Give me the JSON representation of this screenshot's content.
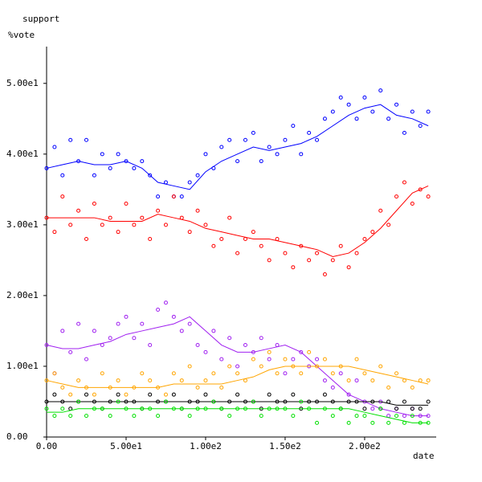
{
  "chart_data": {
    "type": "scatter",
    "title": "support",
    "y_label": "%vote",
    "x_label": "date",
    "xlim": [
      0,
      245
    ],
    "ylim": [
      0,
      55.2
    ],
    "xticks": [
      {
        "value": 0,
        "label": "0.00"
      },
      {
        "value": 50,
        "label": "5.00e1"
      },
      {
        "value": 100,
        "label": "1.00e2"
      },
      {
        "value": 150,
        "label": "1.50e2"
      },
      {
        "value": 200,
        "label": "2.00e2"
      }
    ],
    "yticks": [
      {
        "value": 0,
        "label": "0.00"
      },
      {
        "value": 10,
        "label": "1.00e1"
      },
      {
        "value": 20,
        "label": "2.00e1"
      },
      {
        "value": 30,
        "label": "3.00e1"
      },
      {
        "value": 40,
        "label": "4.00e1"
      },
      {
        "value": 50,
        "label": "5.00e1"
      }
    ],
    "x": [
      0,
      5,
      10,
      15,
      20,
      25,
      30,
      35,
      40,
      45,
      50,
      55,
      60,
      65,
      70,
      75,
      80,
      85,
      90,
      95,
      100,
      105,
      110,
      115,
      120,
      125,
      130,
      135,
      140,
      145,
      150,
      155,
      160,
      165,
      170,
      175,
      180,
      185,
      190,
      195,
      200,
      205,
      210,
      215,
      220,
      225,
      230,
      235,
      240
    ],
    "smooth_x": [
      0,
      10,
      20,
      30,
      40,
      50,
      60,
      70,
      80,
      90,
      100,
      110,
      120,
      130,
      140,
      150,
      160,
      170,
      180,
      190,
      200,
      210,
      220,
      230,
      240
    ],
    "series": [
      {
        "color": "#0000ff",
        "values": [
          38,
          41,
          37,
          42,
          39,
          42,
          37,
          40,
          38,
          40,
          39,
          38,
          39,
          37,
          34,
          36,
          34,
          34,
          36,
          37,
          40,
          38,
          41,
          42,
          39,
          42,
          43,
          39,
          41,
          40,
          42,
          44,
          40,
          43,
          42,
          45,
          46,
          48,
          47,
          45,
          48,
          46,
          49,
          45,
          47,
          43,
          46,
          44,
          46
        ],
        "smooth": [
          38,
          38.5,
          39,
          38.5,
          38.5,
          39,
          38,
          36,
          35.5,
          35,
          37.5,
          39,
          40,
          41,
          40.5,
          41,
          41.5,
          42.5,
          44,
          45.5,
          46.5,
          47,
          45.5,
          45,
          44
        ]
      },
      {
        "color": "#ff0000",
        "values": [
          31,
          29,
          34,
          30,
          32,
          28,
          33,
          30,
          31,
          29,
          33,
          30,
          31,
          28,
          32,
          30,
          34,
          31,
          29,
          32,
          30,
          27,
          28,
          31,
          26,
          28,
          29,
          27,
          25,
          28,
          26,
          24,
          27,
          25,
          26,
          23,
          25,
          27,
          24,
          26,
          28,
          29,
          32,
          30,
          34,
          36,
          33,
          35,
          34
        ],
        "smooth": [
          31,
          31,
          31,
          31,
          30.5,
          30.5,
          30.5,
          31.5,
          31,
          30.5,
          29.5,
          29,
          28.5,
          28,
          28,
          27.5,
          27,
          26.5,
          25.5,
          26,
          27.5,
          29.5,
          32,
          34.5,
          35.5
        ]
      },
      {
        "color": "#a020f0",
        "values": [
          13,
          9,
          15,
          12,
          16,
          11,
          15,
          13,
          14,
          16,
          17,
          14,
          16,
          13,
          18,
          19,
          17,
          15,
          16,
          13,
          12,
          15,
          11,
          14,
          10,
          13,
          12,
          14,
          11,
          13,
          9,
          11,
          12,
          10,
          11,
          8,
          7,
          9,
          6,
          8,
          5,
          4,
          5,
          3,
          4,
          3,
          4,
          3,
          3
        ],
        "smooth": [
          13,
          12.5,
          12.5,
          13,
          13.5,
          14.5,
          15,
          15.5,
          16,
          17,
          15,
          13,
          12,
          12,
          12.5,
          13,
          12,
          10,
          8,
          6,
          5,
          4,
          3.5,
          3,
          3
        ]
      },
      {
        "color": "#ffa500",
        "values": [
          8,
          9,
          7,
          6,
          8,
          7,
          6,
          9,
          7,
          8,
          6,
          7,
          9,
          8,
          7,
          6,
          9,
          8,
          10,
          7,
          8,
          9,
          7,
          10,
          9,
          8,
          11,
          10,
          12,
          9,
          11,
          10,
          9,
          12,
          10,
          11,
          9,
          10,
          8,
          11,
          9,
          8,
          10,
          7,
          9,
          8,
          7,
          8,
          8
        ],
        "smooth": [
          8,
          7.5,
          7,
          7,
          7,
          7,
          7,
          7,
          7.5,
          7.5,
          7.5,
          7.5,
          8,
          8.5,
          9.5,
          10,
          10,
          10,
          10,
          10,
          9.5,
          9,
          8.5,
          8,
          7.5
        ]
      },
      {
        "color": "#000000",
        "values": [
          5,
          6,
          5,
          4,
          5,
          6,
          5,
          4,
          5,
          6,
          5,
          5,
          4,
          6,
          5,
          5,
          6,
          4,
          5,
          5,
          6,
          5,
          4,
          5,
          6,
          5,
          5,
          4,
          6,
          5,
          5,
          6,
          4,
          5,
          5,
          6,
          5,
          4,
          5,
          5,
          4,
          5,
          4,
          5,
          4,
          5,
          4,
          4,
          5
        ],
        "smooth": [
          5,
          5,
          5,
          5,
          5,
          5,
          5,
          5,
          5,
          5,
          5,
          5,
          5,
          5,
          5,
          5,
          5,
          5,
          5,
          5,
          5,
          5,
          4.5,
          4.5,
          4.5
        ]
      },
      {
        "color": "#00e000",
        "values": [
          4,
          3,
          4,
          3,
          5,
          3,
          4,
          4,
          3,
          5,
          4,
          3,
          4,
          4,
          3,
          5,
          4,
          4,
          3,
          4,
          4,
          5,
          4,
          3,
          4,
          4,
          5,
          3,
          4,
          4,
          4,
          3,
          5,
          4,
          2,
          4,
          3,
          4,
          2,
          3,
          3,
          2,
          4,
          2,
          3,
          2,
          3,
          2,
          2
        ],
        "smooth": [
          3.5,
          3.5,
          4,
          4,
          4,
          4,
          4,
          4,
          4,
          4,
          4,
          4,
          4,
          4,
          4,
          4,
          4,
          4,
          4,
          4,
          3.5,
          3,
          2.5,
          2,
          2
        ]
      }
    ]
  }
}
